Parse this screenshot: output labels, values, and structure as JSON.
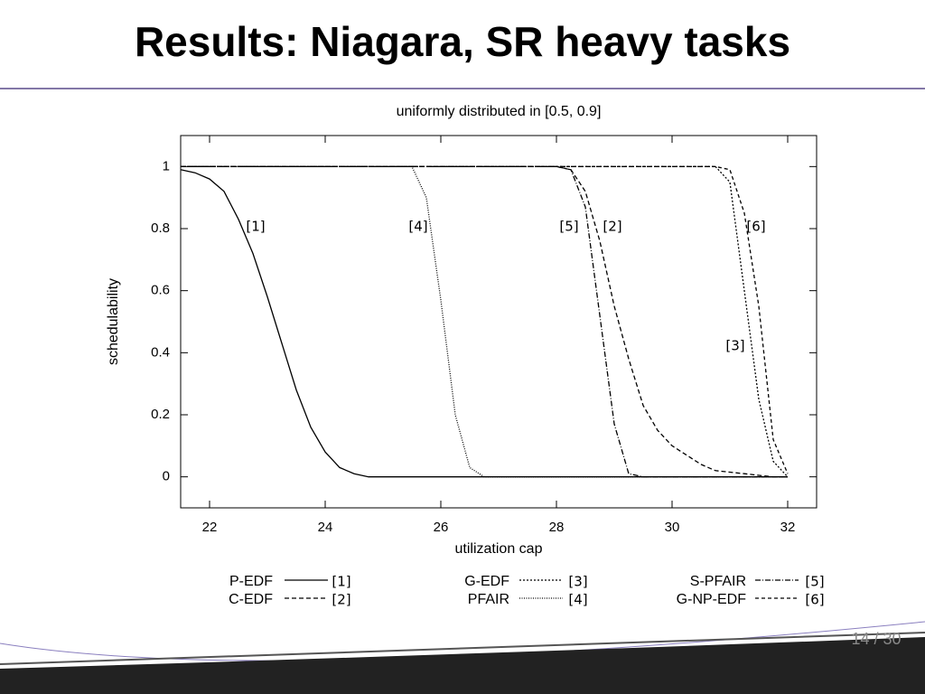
{
  "slide_title": "Results: Niagara, SR heavy tasks",
  "page_label": "14 / 30",
  "chart_data": {
    "type": "line",
    "title": "uniformly distributed in [0.5, 0.9]",
    "x_label": "utilization cap",
    "y_label": "schedulability",
    "xlim": [
      21.5,
      32.5
    ],
    "xticks": [
      22,
      24,
      26,
      28,
      30,
      32
    ],
    "ylim": [
      -0.1,
      1.1
    ],
    "yticks": [
      0,
      0.2,
      0.4,
      0.6,
      0.8,
      1
    ],
    "x": [
      21.5,
      21.75,
      22,
      22.25,
      22.5,
      22.75,
      23,
      23.25,
      23.5,
      23.75,
      24,
      24.25,
      24.5,
      24.75,
      25,
      25.25,
      25.5,
      25.75,
      26,
      26.25,
      26.5,
      26.75,
      27,
      27.25,
      27.5,
      27.75,
      28,
      28.25,
      28.5,
      28.75,
      29,
      29.25,
      29.5,
      29.75,
      30,
      30.25,
      30.5,
      30.75,
      31,
      31.25,
      31.5,
      31.75,
      32
    ],
    "series": [
      {
        "name": "P-EDF",
        "label": "[1]",
        "color": "#000000",
        "dash": "none",
        "values": [
          0.99,
          0.98,
          0.96,
          0.92,
          0.83,
          0.72,
          0.58,
          0.43,
          0.28,
          0.16,
          0.08,
          0.03,
          0.01,
          0,
          0,
          0,
          0,
          0,
          0,
          0,
          0,
          0,
          0,
          0,
          0,
          0,
          0,
          0,
          0,
          0,
          0,
          0,
          0,
          0,
          0,
          0,
          0,
          0,
          0,
          0,
          0,
          0,
          0
        ]
      },
      {
        "name": "C-EDF",
        "label": "[2]",
        "color": "#000000",
        "dash": "5,3",
        "values": [
          1,
          1,
          1,
          1,
          1,
          1,
          1,
          1,
          1,
          1,
          1,
          1,
          1,
          1,
          1,
          1,
          1,
          1,
          1,
          1,
          1,
          1,
          1,
          1,
          1,
          1,
          1,
          0.99,
          0.92,
          0.76,
          0.55,
          0.38,
          0.23,
          0.15,
          0.1,
          0.07,
          0.04,
          0.02,
          0.015,
          0.01,
          0.005,
          0,
          0
        ]
      },
      {
        "name": "G-EDF",
        "label": "[3]",
        "color": "#000000",
        "dash": "2,2",
        "values": [
          1,
          1,
          1,
          1,
          1,
          1,
          1,
          1,
          1,
          1,
          1,
          1,
          1,
          1,
          1,
          1,
          1,
          1,
          1,
          1,
          1,
          1,
          1,
          1,
          1,
          1,
          1,
          1,
          1,
          1,
          1,
          1,
          1,
          1,
          1,
          1,
          1,
          1,
          0.95,
          0.6,
          0.25,
          0.05,
          0
        ]
      },
      {
        "name": "PFAIR",
        "label": "[4]",
        "color": "#000000",
        "dash": "1,1.5",
        "values": [
          1,
          1,
          1,
          1,
          1,
          1,
          1,
          1,
          1,
          1,
          1,
          1,
          1,
          1,
          1,
          1,
          1,
          0.9,
          0.57,
          0.2,
          0.03,
          0,
          0,
          0,
          0,
          0,
          0,
          0,
          0,
          0,
          0,
          0,
          0,
          0,
          0,
          0,
          0,
          0,
          0,
          0,
          0,
          0,
          0
        ]
      },
      {
        "name": "S-PFAIR",
        "label": "[5]",
        "color": "#000000",
        "dash": "6,2,1,2",
        "values": [
          1,
          1,
          1,
          1,
          1,
          1,
          1,
          1,
          1,
          1,
          1,
          1,
          1,
          1,
          1,
          1,
          1,
          1,
          1,
          1,
          1,
          1,
          1,
          1,
          1,
          1,
          1,
          0.99,
          0.87,
          0.52,
          0.17,
          0.01,
          0,
          0,
          0,
          0,
          0,
          0,
          0,
          0,
          0,
          0,
          0
        ]
      },
      {
        "name": "G-NP-EDF",
        "label": "[6]",
        "color": "#000000",
        "dash": "4,3",
        "values": [
          1,
          1,
          1,
          1,
          1,
          1,
          1,
          1,
          1,
          1,
          1,
          1,
          1,
          1,
          1,
          1,
          1,
          1,
          1,
          1,
          1,
          1,
          1,
          1,
          1,
          1,
          1,
          1,
          1,
          1,
          1,
          1,
          1,
          1,
          1,
          1,
          1,
          1,
          0.99,
          0.85,
          0.55,
          0.12,
          0.01
        ]
      }
    ]
  }
}
